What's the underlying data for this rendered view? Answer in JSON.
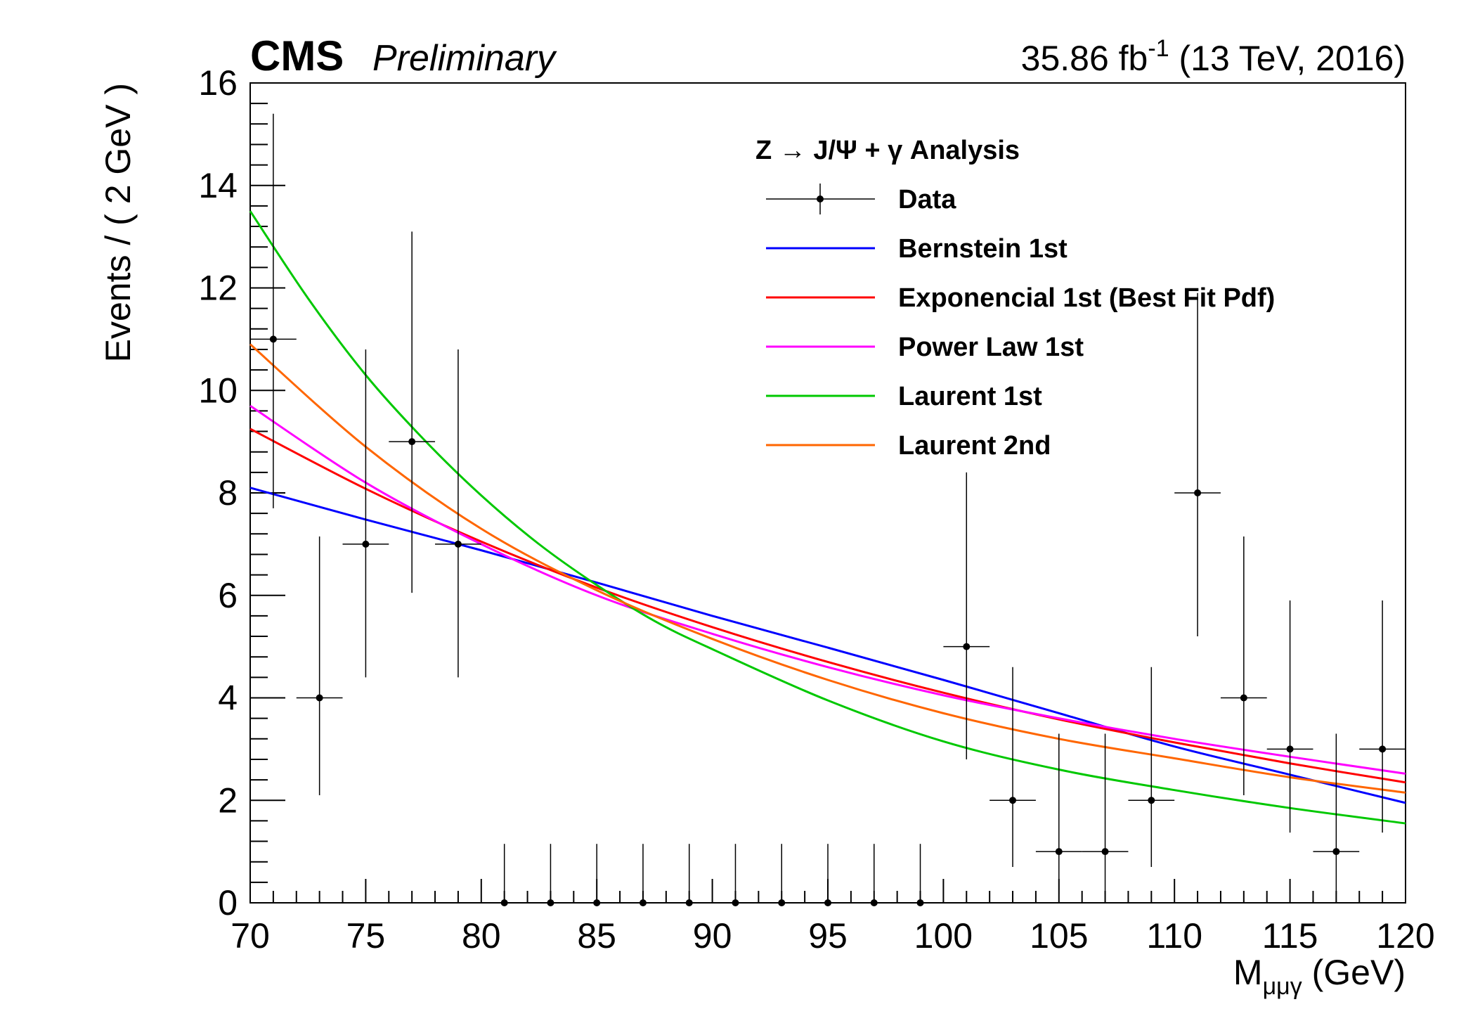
{
  "header": {
    "experiment": "CMS",
    "status": "Preliminary",
    "lumi_value": "35.86 fb",
    "lumi_exp": "-1",
    "lumi_rest": " (13 TeV, 2016)"
  },
  "chart_data": {
    "type": "scatter",
    "xlabel_main": "M",
    "xlabel_sub": "μμγ",
    "xlabel_unit": " (GeV)",
    "ylabel": "Events / ( 2 GeV )",
    "xlim": [
      70,
      120
    ],
    "ylim": [
      0,
      16
    ],
    "x_ticks": [
      70,
      75,
      80,
      85,
      90,
      95,
      100,
      105,
      110,
      115,
      120
    ],
    "y_ticks": [
      0,
      2,
      4,
      6,
      8,
      10,
      12,
      14,
      16
    ],
    "legend": {
      "title": "Z → J/Ψ + γ Analysis",
      "placement": "top-right",
      "entries": [
        "Data",
        "Bernstein 1st",
        "Exponencial 1st (Best Fit Pdf)",
        "Power Law 1st",
        "Laurent 1st",
        "Laurent 2nd"
      ]
    },
    "data_points": {
      "name": "Data",
      "x": [
        71,
        73,
        75,
        77,
        79,
        81,
        83,
        85,
        87,
        89,
        91,
        93,
        95,
        97,
        99,
        101,
        103,
        105,
        107,
        109,
        111,
        113,
        115,
        117,
        119
      ],
      "y": [
        11,
        4,
        7,
        9,
        7,
        0,
        0,
        0,
        0,
        0,
        0,
        0,
        0,
        0,
        0,
        5,
        2,
        1,
        1,
        2,
        8,
        4,
        3,
        1,
        3
      ],
      "yerr_low": [
        3.3,
        1.9,
        2.6,
        2.95,
        2.6,
        0,
        0,
        0,
        0,
        0,
        0,
        0,
        0,
        0,
        0,
        2.2,
        1.3,
        0.83,
        0.83,
        1.3,
        2.8,
        1.9,
        1.63,
        0.83,
        1.63
      ],
      "yerr_high": [
        4.4,
        3.15,
        3.8,
        4.1,
        3.8,
        1.15,
        1.15,
        1.15,
        1.15,
        1.15,
        1.15,
        1.15,
        1.15,
        1.15,
        1.15,
        3.4,
        2.6,
        2.3,
        2.3,
        2.6,
        3.9,
        3.15,
        2.9,
        2.3,
        2.9
      ],
      "xerr": 1
    },
    "series": [
      {
        "name": "Bernstein 1st",
        "color": "#0000ff",
        "x": [
          70,
          75,
          80,
          85,
          90,
          95,
          100,
          105,
          110,
          115,
          120
        ],
        "y": [
          8.1,
          7.48,
          6.88,
          6.25,
          5.6,
          4.98,
          4.35,
          3.7,
          3.05,
          2.5,
          1.95
        ]
      },
      {
        "name": "Exponencial 1st (Best Fit Pdf)",
        "color": "#ff0000",
        "x": [
          70,
          75,
          80,
          85,
          90,
          95,
          100,
          105,
          110,
          115,
          120
        ],
        "y": [
          9.25,
          8.08,
          7.05,
          6.15,
          5.38,
          4.7,
          4.1,
          3.58,
          3.13,
          2.72,
          2.35
        ]
      },
      {
        "name": "Power Law 1st",
        "color": "#ff00ff",
        "x": [
          70,
          75,
          80,
          85,
          90,
          95,
          100,
          105,
          110,
          115,
          120
        ],
        "y": [
          9.7,
          8.2,
          7.0,
          6.0,
          5.25,
          4.6,
          4.05,
          3.6,
          3.2,
          2.85,
          2.52
        ]
      },
      {
        "name": "Laurent 1st",
        "color": "#00c800",
        "x": [
          70,
          72.5,
          75,
          77.5,
          80,
          82.5,
          85,
          87.5,
          90,
          95,
          100,
          105,
          110,
          115,
          120
        ],
        "y": [
          13.5,
          11.8,
          10.3,
          9.05,
          7.95,
          7.0,
          6.2,
          5.5,
          4.95,
          3.95,
          3.15,
          2.6,
          2.2,
          1.85,
          1.55
        ]
      },
      {
        "name": "Laurent 2nd",
        "color": "#ff6600",
        "x": [
          70,
          75,
          80,
          85,
          90,
          95,
          100,
          105,
          110,
          115,
          120
        ],
        "y": [
          10.9,
          8.9,
          7.3,
          6.1,
          5.15,
          4.35,
          3.7,
          3.2,
          2.82,
          2.45,
          2.15
        ]
      }
    ]
  }
}
